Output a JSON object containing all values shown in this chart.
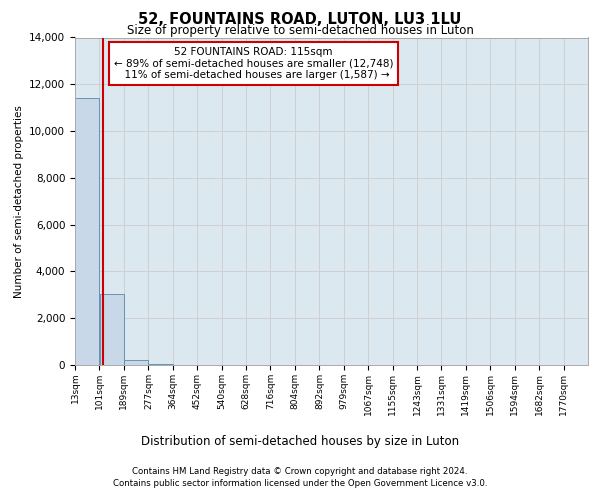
{
  "title": "52, FOUNTAINS ROAD, LUTON, LU3 1LU",
  "subtitle": "Size of property relative to semi-detached houses in Luton",
  "xlabel": "Distribution of semi-detached houses by size in Luton",
  "ylabel": "Number of semi-detached properties",
  "property_label": "52 FOUNTAINS ROAD: 115sqm",
  "pct_smaller": 89,
  "count_smaller": 12748,
  "pct_larger": 11,
  "count_larger": 1587,
  "bin_edges": [
    13,
    101,
    189,
    277,
    364,
    452,
    540,
    628,
    716,
    804,
    892,
    979,
    1067,
    1155,
    1243,
    1331,
    1419,
    1506,
    1594,
    1682,
    1770
  ],
  "bin_labels": [
    "13sqm",
    "101sqm",
    "189sqm",
    "277sqm",
    "364sqm",
    "452sqm",
    "540sqm",
    "628sqm",
    "716sqm",
    "804sqm",
    "892sqm",
    "979sqm",
    "1067sqm",
    "1155sqm",
    "1243sqm",
    "1331sqm",
    "1419sqm",
    "1506sqm",
    "1594sqm",
    "1682sqm",
    "1770sqm"
  ],
  "bar_heights": [
    11400,
    3050,
    200,
    50,
    20,
    10,
    5,
    3,
    2,
    1,
    1,
    1,
    0,
    0,
    0,
    0,
    0,
    0,
    0,
    0
  ],
  "bar_color": "#c8d8e8",
  "bar_edge_color": "#5588aa",
  "red_line_x": 115,
  "red_line_color": "#cc0000",
  "annotation_box_color": "#cc0000",
  "grid_color": "#cccccc",
  "background_color": "#dce8f0",
  "ylim": [
    0,
    14000
  ],
  "yticks": [
    0,
    2000,
    4000,
    6000,
    8000,
    10000,
    12000,
    14000
  ],
  "footer_line1": "Contains HM Land Registry data © Crown copyright and database right 2024.",
  "footer_line2": "Contains public sector information licensed under the Open Government Licence v3.0."
}
